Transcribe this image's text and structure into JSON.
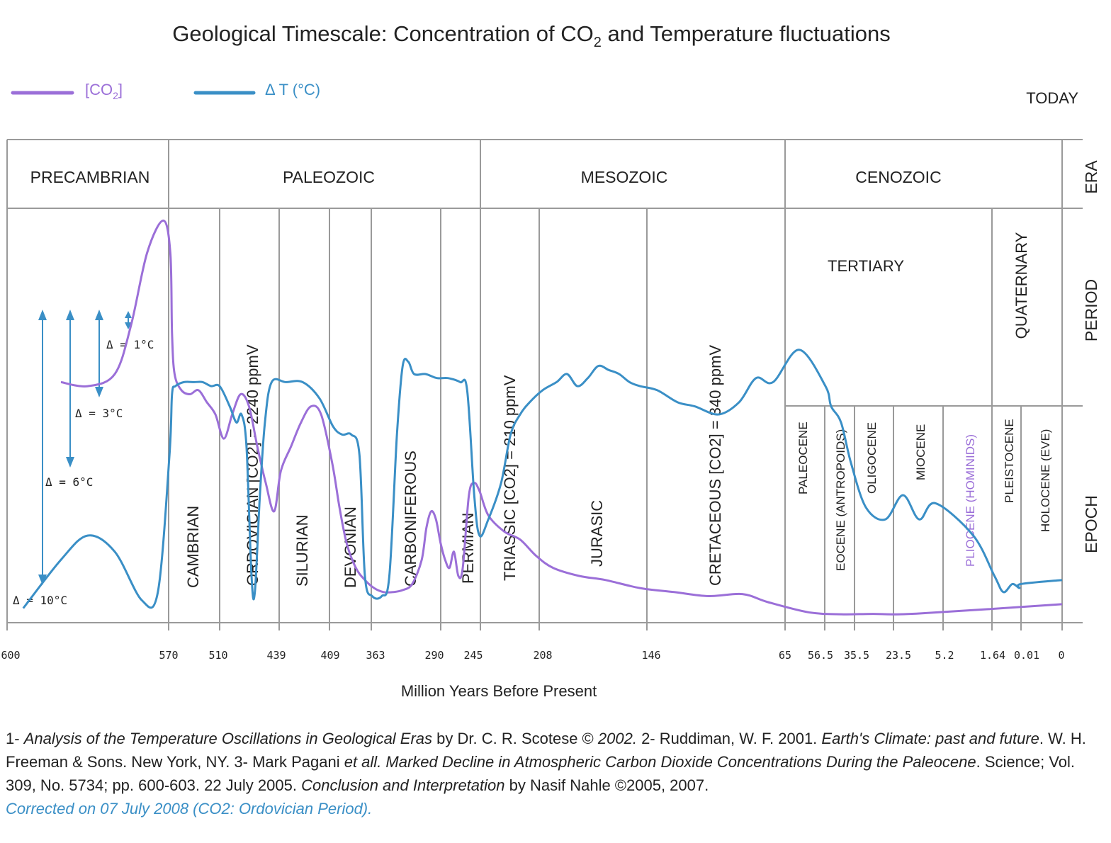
{
  "title": {
    "prefix": "Geological Timescale: Concentration of CO",
    "sub": "2",
    "suffix": " and Temperature  fluctuations"
  },
  "colors": {
    "co2": "#9b6fd8",
    "temp": "#3a8fc6",
    "grid": "#9a9a9a"
  },
  "legend": {
    "co2": {
      "prefix": "[CO",
      "sub": "2",
      "suffix": "]"
    },
    "temp": "Δ T (°C)"
  },
  "today_label": "TODAY",
  "side_labels": {
    "era": "ERA",
    "period": "PERIOD",
    "epoch": "EPOCH"
  },
  "eras": [
    "PRECAMBRIAN",
    "PALEOZOIC",
    "MESOZOIC",
    "CENOZOIC"
  ],
  "tertiary_label": "TERTIARY",
  "quaternary_label": "QUATERNARY",
  "periods": [
    "CAMBRIAN",
    "ORDOVICIAN [CO2] = 2240 ppmV",
    "SILURIAN",
    "DEVONIAN",
    "CARBONIFEROUS",
    "PERMIAN",
    "TRIASSIC [CO2] = 210 ppmV",
    "JURASIC",
    "CRETACEOUS [CO2] = 340 ppmV"
  ],
  "epochs": [
    "PALEOCENE",
    "EOCENE (ANTROPOIDS)",
    "OLIGOCENE",
    "MIOCENE",
    "PLIOCENE (HOMINIDS)",
    "PLEISTOCENE",
    "HOLOCENE (EVE)"
  ],
  "deltas": [
    "Δ = 1°C",
    "Δ = 3°C",
    "Δ = 6°C",
    "Δ = 10°C"
  ],
  "x_ticks": [
    "600",
    "570",
    "510",
    "439",
    "409",
    "363",
    "290",
    "245",
    "208",
    "146",
    "65",
    "56.5",
    "35.5",
    "23.5",
    "5.2",
    "1.64",
    "0.01",
    "0"
  ],
  "x_axis_label": "Million Years Before Present",
  "references": {
    "r1_num": "1- ",
    "r1_title": "Analysis of the Temperature Oscillations in Geological Eras",
    "r1_rest": " by Dr. C. R. Scotese  © ",
    "r1_year": "2002.",
    "r2_num": " 2- Ruddiman, W. F. 2001. ",
    "r2_title": "Earth's Climate: past and future",
    "r2_rest": ". W. H. Freeman & Sons. New York, NY. 3- Mark Pagani ",
    "r3_etall": "et all. ",
    "r3_title": "Marked Decline in Atmospheric Carbon Dioxide Concentrations During the Paleocene",
    "r3_rest": ". Science; Vol. 309, No. 5734; pp. 600-603. 22 July 2005. ",
    "r4_title": "Conclusion and Interpretation",
    "r4_rest": " by Nasif Nahle ©2005, 2007.",
    "correction": "Corrected on 07 July 2008 (CO2: Ordovician Period)."
  },
  "chart_data": {
    "type": "line",
    "title": "Geological Timescale: Concentration of CO2 and Temperature fluctuations",
    "xlabel": "Million Years Before Present",
    "ylabel": "",
    "x_axis_reversed": true,
    "x_axis_note": "non-uniform axis; tick positions follow geological boundaries",
    "x_ticks": [
      600,
      570,
      510,
      439,
      409,
      363,
      290,
      245,
      208,
      146,
      65,
      56.5,
      35.5,
      23.5,
      5.2,
      1.64,
      0.01,
      0
    ],
    "legend_placement": "top-left",
    "grid": false,
    "series": [
      {
        "name": "[CO2]",
        "note": "relative, unlabeled vertical scale",
        "points": [
          [
            590,
            0.58
          ],
          [
            585,
            0.57
          ],
          [
            580,
            0.6
          ],
          [
            577,
            0.72
          ],
          [
            574,
            0.9
          ],
          [
            571,
            0.98
          ],
          [
            568,
            0.9
          ],
          [
            566,
            0.7
          ],
          [
            563,
            0.6
          ],
          [
            555,
            0.56
          ],
          [
            545,
            0.55
          ],
          [
            535,
            0.56
          ],
          [
            525,
            0.53
          ],
          [
            515,
            0.5
          ],
          [
            505,
            0.44
          ],
          [
            495,
            0.5
          ],
          [
            485,
            0.55
          ],
          [
            475,
            0.52
          ],
          [
            465,
            0.42
          ],
          [
            455,
            0.33
          ],
          [
            445,
            0.26
          ],
          [
            438,
            0.36
          ],
          [
            432,
            0.42
          ],
          [
            426,
            0.48
          ],
          [
            420,
            0.52
          ],
          [
            414,
            0.5
          ],
          [
            406,
            0.38
          ],
          [
            398,
            0.27
          ],
          [
            390,
            0.18
          ],
          [
            380,
            0.12
          ],
          [
            370,
            0.09
          ],
          [
            360,
            0.07
          ],
          [
            350,
            0.06
          ],
          [
            340,
            0.06
          ],
          [
            330,
            0.065
          ],
          [
            320,
            0.08
          ],
          [
            310,
            0.14
          ],
          [
            305,
            0.22
          ],
          [
            300,
            0.26
          ],
          [
            295,
            0.24
          ],
          [
            290,
            0.18
          ],
          [
            285,
            0.14
          ],
          [
            280,
            0.12
          ],
          [
            275,
            0.16
          ],
          [
            270,
            0.1
          ],
          [
            265,
            0.12
          ],
          [
            258,
            0.3
          ],
          [
            252,
            0.33
          ],
          [
            246,
            0.31
          ],
          [
            240,
            0.25
          ],
          [
            230,
            0.21
          ],
          [
            220,
            0.19
          ],
          [
            210,
            0.15
          ],
          [
            200,
            0.12
          ],
          [
            185,
            0.1
          ],
          [
            170,
            0.09
          ],
          [
            150,
            0.07
          ],
          [
            130,
            0.06
          ],
          [
            110,
            0.05
          ],
          [
            90,
            0.055
          ],
          [
            75,
            0.035
          ],
          [
            60,
            0.01
          ],
          [
            45,
            0.005
          ],
          [
            30,
            0.006
          ],
          [
            15,
            0.0065
          ],
          [
            0,
            0.03
          ]
        ]
      },
      {
        "name": "Δ T (°C)",
        "note": "relative, unlabeled vertical scale",
        "points": [
          [
            597,
            0.02
          ],
          [
            590,
            0.14
          ],
          [
            585,
            0.2
          ],
          [
            580,
            0.16
          ],
          [
            575,
            0.04
          ],
          [
            572,
            0.06
          ],
          [
            569,
            0.4
          ],
          [
            566,
            0.55
          ],
          [
            562,
            0.57
          ],
          [
            552,
            0.58
          ],
          [
            540,
            0.58
          ],
          [
            530,
            0.58
          ],
          [
            520,
            0.57
          ],
          [
            510,
            0.57
          ],
          [
            498,
            0.52
          ],
          [
            490,
            0.48
          ],
          [
            484,
            0.5
          ],
          [
            478,
            0.42
          ],
          [
            472,
            0.1
          ],
          [
            468,
            0.06
          ],
          [
            462,
            0.3
          ],
          [
            456,
            0.48
          ],
          [
            448,
            0.58
          ],
          [
            435,
            0.58
          ],
          [
            425,
            0.58
          ],
          [
            415,
            0.54
          ],
          [
            405,
            0.47
          ],
          [
            395,
            0.45
          ],
          [
            385,
            0.45
          ],
          [
            376,
            0.4
          ],
          [
            370,
            0.1
          ],
          [
            362,
            0.05
          ],
          [
            352,
            0.05
          ],
          [
            344,
            0.1
          ],
          [
            336,
            0.45
          ],
          [
            330,
            0.62
          ],
          [
            324,
            0.63
          ],
          [
            318,
            0.6
          ],
          [
            306,
            0.6
          ],
          [
            294,
            0.59
          ],
          [
            282,
            0.59
          ],
          [
            268,
            0.58
          ],
          [
            260,
            0.56
          ],
          [
            252,
            0.3
          ],
          [
            246,
            0.2
          ],
          [
            240,
            0.24
          ],
          [
            232,
            0.33
          ],
          [
            226,
            0.45
          ],
          [
            220,
            0.5
          ],
          [
            214,
            0.53
          ],
          [
            206,
            0.56
          ],
          [
            198,
            0.58
          ],
          [
            192,
            0.6
          ],
          [
            186,
            0.57
          ],
          [
            180,
            0.59
          ],
          [
            174,
            0.62
          ],
          [
            168,
            0.61
          ],
          [
            162,
            0.6
          ],
          [
            156,
            0.58
          ],
          [
            150,
            0.57
          ],
          [
            140,
            0.56
          ],
          [
            128,
            0.53
          ],
          [
            118,
            0.52
          ],
          [
            104,
            0.5
          ],
          [
            92,
            0.53
          ],
          [
            82,
            0.59
          ],
          [
            72,
            0.58
          ],
          [
            62,
            0.66
          ],
          [
            56,
            0.57
          ],
          [
            52,
            0.52
          ],
          [
            45,
            0.48
          ],
          [
            38,
            0.38
          ],
          [
            32,
            0.27
          ],
          [
            26,
            0.24
          ],
          [
            20,
            0.3
          ],
          [
            14,
            0.24
          ],
          [
            8,
            0.28
          ],
          [
            3,
            0.2
          ],
          [
            1.5,
            0.1
          ],
          [
            1,
            0.06
          ],
          [
            0.5,
            0.08
          ],
          [
            0.1,
            0.07
          ],
          [
            0.01,
            0.08
          ],
          [
            0,
            0.09
          ]
        ]
      }
    ]
  }
}
